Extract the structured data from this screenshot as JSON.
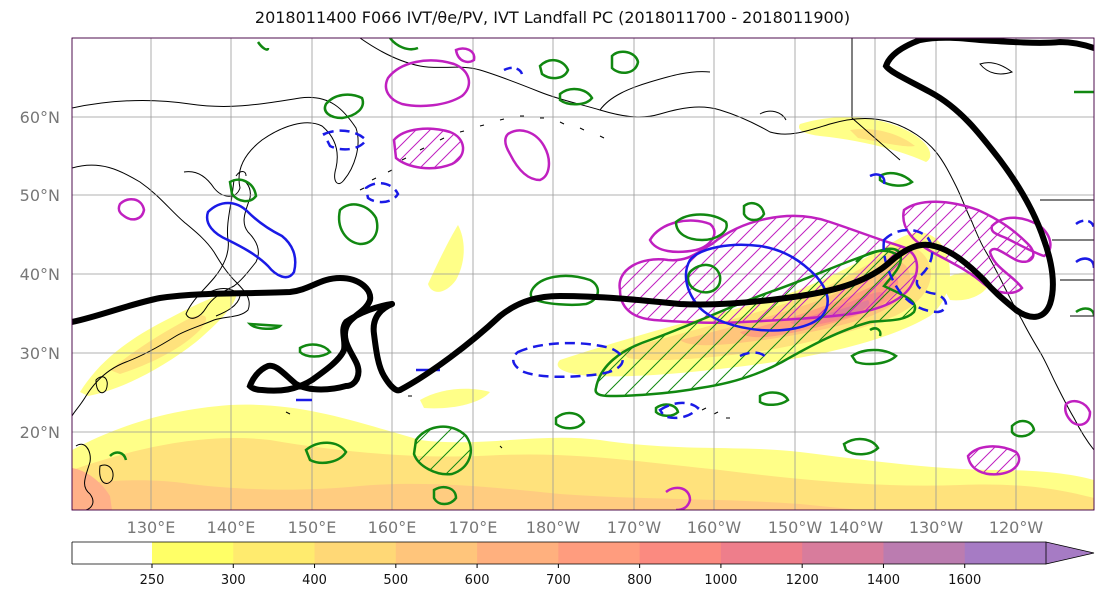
{
  "title": "2018011400 F066 IVT/θe/PV, IVT Landfall PC (2018011700 - 2018011900)",
  "map": {
    "lat_labels": [
      "60°N",
      "50°N",
      "40°N",
      "30°N",
      "20°N"
    ],
    "lon_labels": [
      "130°E",
      "140°E",
      "150°E",
      "160°E",
      "170°E",
      "180°W",
      "170°W",
      "160°W",
      "150°W",
      "140°W",
      "130°W",
      "120°W"
    ],
    "colors": {
      "jet": "#000000",
      "green_contour": "#118811",
      "blue_contour": "#1a1ae6",
      "magenta_contour": "#c020c0",
      "coast": "#000000"
    }
  },
  "colorbar": {
    "levels": [
      "250",
      "300",
      "400",
      "500",
      "600",
      "700",
      "800",
      "1000",
      "1200",
      "1400",
      "1600"
    ],
    "colors": [
      "#ffff66",
      "#ffeb6e",
      "#ffd876",
      "#ffc57b",
      "#ffb07e",
      "#ff9c7e",
      "#fb8a80",
      "#ee7e8b",
      "#d87c9c",
      "#bb7cb0",
      "#a67bc4"
    ]
  }
}
